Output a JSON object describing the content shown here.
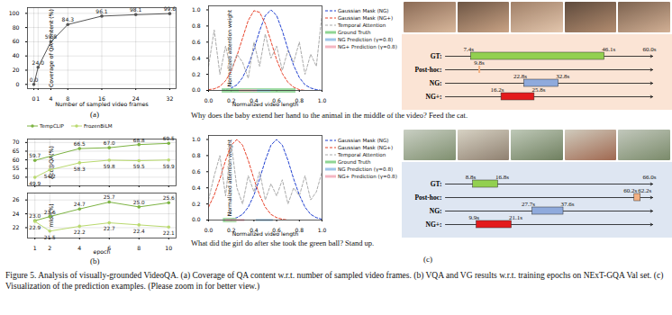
{
  "panel_labels": [
    "(a)",
    "(b)",
    "(c)"
  ],
  "caption": "Figure 5. Analysis of visually-grounded VideoQA. (a) Coverage of QA content w.r.t. number of sampled video frames. (b) VQA and VG results w.r.t. training epochs on NExT-GQA Val set. (c) Visualization of the prediction examples. (Please zoom in for better view.)",
  "chart_data": [
    {
      "type": "line",
      "xlabel": "Number of sampled video frames",
      "ylabel": "Coverage of QA content (%)",
      "x": [
        0,
        1,
        4,
        8,
        16,
        24,
        32
      ],
      "values": [
        0.0,
        24.0,
        59.8,
        84.3,
        96.1,
        98.1,
        99.6
      ],
      "value_labels": [
        "0.0",
        "24.0",
        "59.8",
        "84.3",
        "96.1",
        "98.1",
        "99.6"
      ],
      "color": "#555555",
      "marker": "circle",
      "data_labels": true,
      "grid": true,
      "xlim": [
        -1.5,
        33.5
      ],
      "xticks": [
        0,
        1,
        4,
        8,
        16,
        24,
        32
      ],
      "ylim": [
        -6,
        108
      ],
      "yticks": [
        0,
        20,
        40,
        60,
        80,
        100
      ]
    },
    {
      "type": "line",
      "ylabel": "Acc@QA(%)",
      "xlim": [
        0.5,
        10.5
      ],
      "xticks": [
        1,
        2,
        4,
        6,
        8,
        10
      ],
      "ylim": [
        45,
        72
      ],
      "yticks": [
        50,
        55,
        60,
        65,
        70
      ],
      "tick_labels": "y",
      "grid": true,
      "legend": "top",
      "data_labels": true,
      "series": [
        {
          "name": "TempCLIP",
          "color": "#7cb342",
          "marker": "circle",
          "x": [
            1,
            4,
            6,
            8,
            10
          ],
          "values": [
            59.7,
            66.5,
            67.0,
            68.8,
            69.5
          ],
          "value_labels": [
            "59.7",
            "66.5",
            "67.0",
            "68.8",
            "69.5"
          ]
        },
        {
          "name": "FrozenBiLM",
          "color": "#b9d96e",
          "marker": "circle",
          "x": [
            1,
            2,
            4,
            6,
            8,
            10
          ],
          "values": [
            49.9,
            54.2,
            58.3,
            59.8,
            59.5,
            59.9
          ],
          "value_labels": [
            "49.9",
            "54.2",
            "58.3",
            "59.8",
            "59.5",
            "59.9"
          ]
        }
      ]
    },
    {
      "type": "line",
      "xlabel": "epoch",
      "ylabel": "mIoP(%)",
      "xlim": [
        0.5,
        10.5
      ],
      "xticks": [
        1,
        2,
        4,
        6,
        8,
        10
      ],
      "ylim": [
        20.5,
        27
      ],
      "yticks": [
        22,
        24,
        26
      ],
      "grid": true,
      "data_labels": true,
      "series": [
        {
          "name": "TempCLIP",
          "color": "#7cb342",
          "marker": "circle",
          "x": [
            1,
            2,
            4,
            6,
            8,
            10
          ],
          "values": [
            23.0,
            23.6,
            24.7,
            25.7,
            25.0,
            25.6
          ],
          "value_labels": [
            "23.0",
            "23.6",
            "24.7",
            "25.7",
            "25.0",
            "25.6"
          ]
        },
        {
          "name": "FrozenBiLM",
          "color": "#b9d96e",
          "marker": "circle",
          "x": [
            1,
            2,
            4,
            6,
            8,
            10
          ],
          "values": [
            22.9,
            21.5,
            22.2,
            22.7,
            22.4,
            22.1
          ],
          "value_labels": [
            "22.9",
            "21.5",
            "22.2",
            "22.7",
            "22.4",
            "22.1"
          ]
        }
      ]
    },
    {
      "type": "line",
      "xlabel": "Normalized video length",
      "ylabel": "Normalized attention weight",
      "question": "Why does the baby extend her hand to the animal in the middle of the video? Feed the cat.",
      "legend": "right",
      "x": [
        0,
        0.05,
        0.1,
        0.15,
        0.2,
        0.25,
        0.3,
        0.35,
        0.4,
        0.45,
        0.5,
        0.55,
        0.6,
        0.65,
        0.7,
        0.75,
        0.8,
        0.85,
        0.9,
        0.95,
        1
      ],
      "xlim": [
        0,
        1
      ],
      "xticks": [
        {
          "value": 0,
          "label": "0.0"
        },
        {
          "value": 0.2,
          "label": "0.2"
        },
        {
          "value": 0.4,
          "label": "0.4"
        },
        {
          "value": 0.6,
          "label": "0.6"
        },
        {
          "value": 0.8,
          "label": "0.8"
        },
        {
          "value": 1,
          "label": "1.0"
        }
      ],
      "ylim": [
        0,
        1.05
      ],
      "yticks": [
        {
          "value": 0,
          "label": "0.0"
        },
        {
          "value": 0.2,
          "label": "0.2"
        },
        {
          "value": 0.4,
          "label": "0.4"
        },
        {
          "value": 0.6,
          "label": "0.6"
        },
        {
          "value": 0.8,
          "label": "0.8"
        },
        {
          "value": 1,
          "label": "1.0"
        }
      ],
      "series": [
        {
          "name": "Gaussian Mask (NG)",
          "color": "#1f3fd0",
          "line_style": "dashed",
          "values": [
            0.0,
            0.0,
            0.0,
            0.01,
            0.03,
            0.07,
            0.16,
            0.31,
            0.51,
            0.74,
            0.93,
            1.0,
            0.93,
            0.74,
            0.51,
            0.31,
            0.16,
            0.07,
            0.03,
            0.01,
            0.0
          ]
        },
        {
          "name": "Gaussian Mask (NG+)",
          "color": "#e8432b",
          "line_style": "dashed",
          "values": [
            0.01,
            0.02,
            0.05,
            0.12,
            0.24,
            0.43,
            0.65,
            0.87,
            0.99,
            0.97,
            0.83,
            0.61,
            0.38,
            0.21,
            0.1,
            0.04,
            0.01,
            0.0,
            0.0,
            0.0,
            0.0
          ]
        },
        {
          "name": "Temporal Attention",
          "color": "#aaaaaa",
          "line_style": "dashed",
          "values": [
            0.3,
            0.75,
            0.2,
            0.55,
            0.25,
            0.45,
            0.35,
            0.15,
            0.6,
            0.3,
            0.7,
            0.4,
            0.55,
            0.25,
            0.5,
            0.35,
            0.6,
            0.2,
            0.45,
            0.3,
            0.95
          ]
        },
        {
          "name": "Ground Truth",
          "color": "#8fd694",
          "type": "interval",
          "start": 0.12,
          "end": 0.77
        },
        {
          "name": "NG Prediction (γ=0.8)",
          "color": "#9ec5e8",
          "type": "interval",
          "start": 0.38,
          "end": 0.55
        },
        {
          "name": "NG+ Prediction (γ=0.8)",
          "color": "#f4b6c2",
          "type": "interval",
          "start": 0.27,
          "end": 0.43
        }
      ]
    },
    {
      "type": "timeline",
      "categories": [
        "GT:",
        "Post-hoc:",
        "NG:",
        "NG+:"
      ],
      "xlim": [
        0,
        60.0
      ],
      "xticks": [
        {
          "value": 60.0,
          "label": "60.0s"
        }
      ],
      "segments": [
        {
          "category": "GT:",
          "color": "#92d050",
          "start": {
            "value": 7.4,
            "label": "7.4s"
          },
          "end": {
            "value": 46.1,
            "label": "46.1s"
          }
        },
        {
          "category": "Post-hoc:",
          "color": "#f4b183",
          "start": {
            "value": 9.8,
            "label": "9.8s"
          },
          "end": null
        },
        {
          "category": "NG:",
          "color": "#8faadc",
          "start": {
            "value": 22.8,
            "label": "22.8s"
          },
          "end": {
            "value": 32.8,
            "label": "32.8s"
          }
        },
        {
          "category": "NG+:",
          "color": "#e31a1c",
          "start": {
            "value": 16.2,
            "label": "16.2s"
          },
          "end": {
            "value": 25.8,
            "label": "25.8s"
          }
        }
      ]
    },
    {
      "type": "line",
      "xlabel": "Normalized video length",
      "ylabel": "Normalized attention weight",
      "question": "What did the girl do after she took the green ball? Stand up.",
      "legend": "right",
      "x": [
        0,
        0.05,
        0.1,
        0.15,
        0.2,
        0.25,
        0.3,
        0.35,
        0.4,
        0.45,
        0.5,
        0.55,
        0.6,
        0.65,
        0.7,
        0.75,
        0.8,
        0.85,
        0.9,
        0.95,
        1
      ],
      "xlim": [
        0,
        1
      ],
      "xticks": [
        {
          "value": 0,
          "label": "0.0"
        },
        {
          "value": 0.2,
          "label": "0.2"
        },
        {
          "value": 0.4,
          "label": "0.4"
        },
        {
          "value": 0.6,
          "label": "0.6"
        },
        {
          "value": 0.8,
          "label": "0.8"
        },
        {
          "value": 1,
          "label": "1.0"
        }
      ],
      "ylim": [
        0,
        1.05
      ],
      "yticks": [
        {
          "value": 0,
          "label": "0.0"
        },
        {
          "value": 0.2,
          "label": "0.2"
        },
        {
          "value": 0.4,
          "label": "0.4"
        },
        {
          "value": 0.6,
          "label": "0.6"
        },
        {
          "value": 0.8,
          "label": "0.8"
        },
        {
          "value": 1,
          "label": "1.0"
        }
      ],
      "series": [
        {
          "name": "Gaussian Mask (NG)",
          "color": "#1f3fd0",
          "line_style": "dashed",
          "values": [
            0.0,
            0.0,
            0.0,
            0.0,
            0.01,
            0.03,
            0.07,
            0.16,
            0.31,
            0.51,
            0.74,
            0.93,
            1.0,
            0.93,
            0.74,
            0.51,
            0.31,
            0.16,
            0.07,
            0.03,
            0.01
          ]
        },
        {
          "name": "Gaussian Mask (NG+)",
          "color": "#e8432b",
          "line_style": "dashed",
          "values": [
            0.16,
            0.31,
            0.51,
            0.74,
            0.93,
            1.0,
            0.93,
            0.74,
            0.51,
            0.31,
            0.16,
            0.07,
            0.03,
            0.01,
            0.0,
            0.0,
            0.0,
            0.0,
            0.0,
            0.0,
            0.0
          ]
        },
        {
          "name": "Temporal Attention",
          "color": "#aaaaaa",
          "line_style": "dashed",
          "values": [
            0.25,
            0.55,
            0.8,
            0.3,
            0.95,
            0.4,
            0.2,
            0.55,
            0.35,
            0.6,
            0.25,
            0.45,
            0.3,
            0.5,
            0.2,
            0.4,
            0.3,
            0.55,
            0.25,
            0.35,
            0.6
          ]
        },
        {
          "name": "Ground Truth",
          "color": "#8fd694",
          "type": "interval",
          "start": 0.13,
          "end": 0.25
        },
        {
          "name": "NG Prediction (γ=0.8)",
          "color": "#9ec5e8",
          "type": "interval",
          "start": 0.42,
          "end": 0.57
        },
        {
          "name": "NG+ Prediction (γ=0.8)",
          "color": "#f4b6c2",
          "type": "interval",
          "start": 0.15,
          "end": 0.32
        }
      ]
    },
    {
      "type": "timeline",
      "categories": [
        "GT:",
        "Post-hoc:",
        "NG:",
        "NG+:"
      ],
      "xlim": [
        0,
        66.0
      ],
      "xticks": [
        {
          "value": 66.0,
          "label": "66.0s"
        }
      ],
      "segments": [
        {
          "category": "GT:",
          "color": "#92d050",
          "start": {
            "value": 8.8,
            "label": "8.8s"
          },
          "end": {
            "value": 16.8,
            "label": "16.8s"
          }
        },
        {
          "category": "Post-hoc:",
          "color": "#f4b183",
          "start": {
            "value": 60.2,
            "label": "60.2s"
          },
          "end": {
            "value": 62.2,
            "label": "62.2s"
          }
        },
        {
          "category": "NG:",
          "color": "#8faadc",
          "start": {
            "value": 27.7,
            "label": "27.7s"
          },
          "end": {
            "value": 37.6,
            "label": "37.6s"
          }
        },
        {
          "category": "NG+:",
          "color": "#e31a1c",
          "start": {
            "value": 9.9,
            "label": "9.9s"
          },
          "end": {
            "value": 21.1,
            "label": "21.1s"
          }
        }
      ]
    }
  ]
}
